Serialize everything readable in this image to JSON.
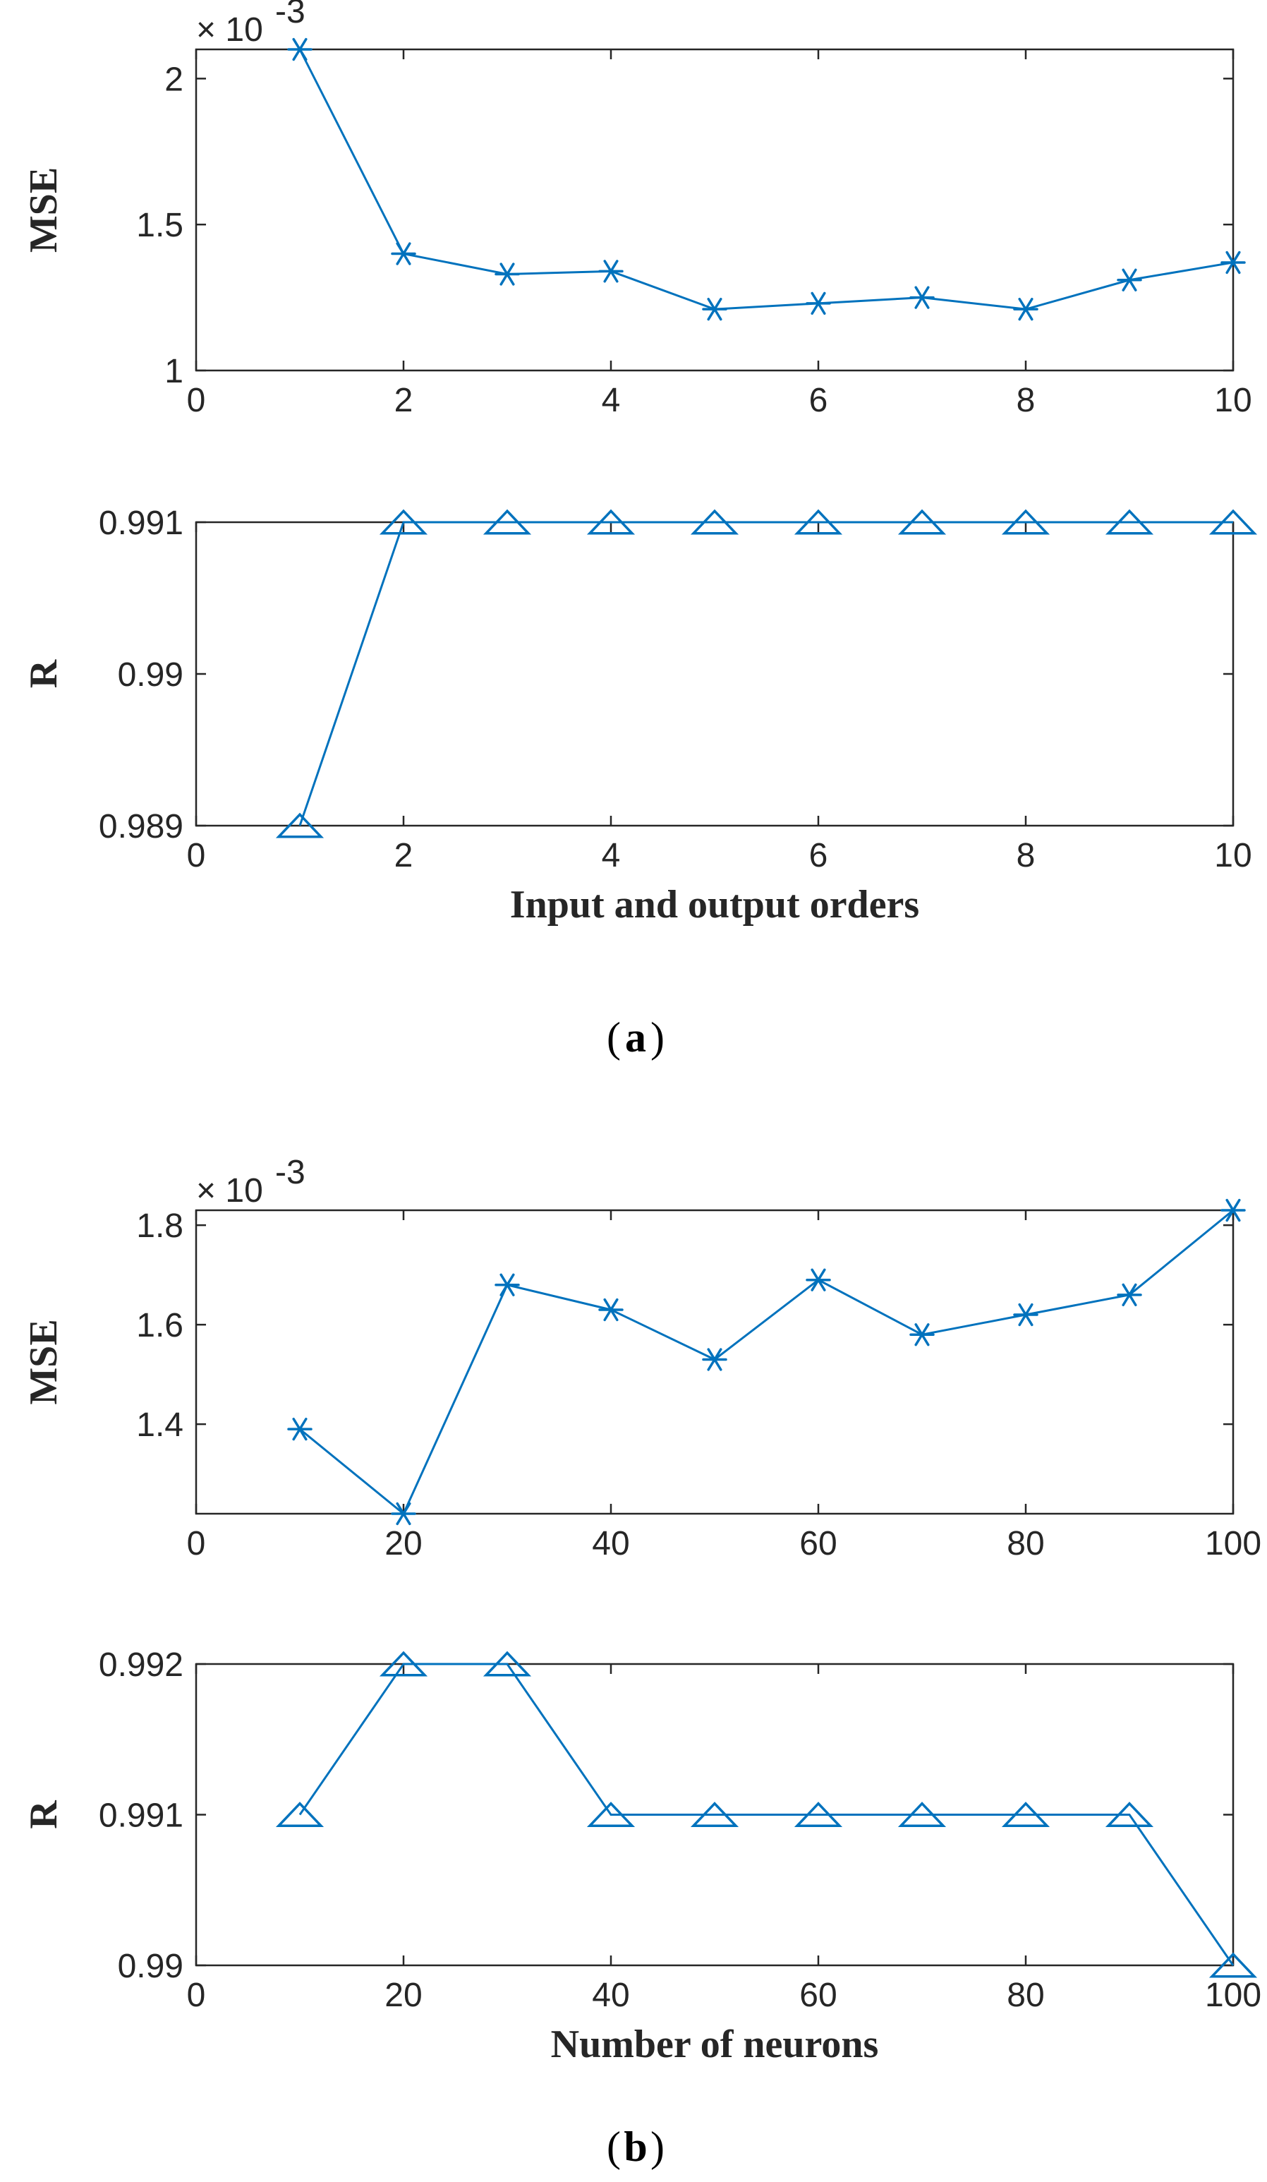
{
  "colors": {
    "series": "#0072BD",
    "axis": "#262626"
  },
  "chart_data": [
    {
      "type": "line",
      "panel": "a",
      "ylabel": "MSE",
      "xlabel": "",
      "multiplier": "× 10",
      "multiplier_exp": "-3",
      "marker": "asterisk",
      "x": [
        1,
        2,
        3,
        4,
        5,
        6,
        7,
        8,
        9,
        10
      ],
      "y": [
        2.1,
        1.4,
        1.33,
        1.34,
        1.21,
        1.23,
        1.25,
        1.21,
        1.31,
        1.37
      ],
      "xlim": [
        0,
        10
      ],
      "ylim": [
        1,
        2.1
      ],
      "xticks": [
        0,
        2,
        4,
        6,
        8,
        10
      ],
      "yticks": [
        1,
        1.5,
        2
      ],
      "xtick_labels": [
        "0",
        "2",
        "4",
        "6",
        "8",
        "10"
      ],
      "ytick_labels": [
        "1",
        "1.5",
        "2"
      ]
    },
    {
      "type": "line",
      "panel": "a",
      "ylabel": "R",
      "xlabel": "Input and output orders",
      "marker": "triangle",
      "x": [
        1,
        2,
        3,
        4,
        5,
        6,
        7,
        8,
        9,
        10
      ],
      "y": [
        0.989,
        0.991,
        0.991,
        0.991,
        0.991,
        0.991,
        0.991,
        0.991,
        0.991,
        0.991
      ],
      "xlim": [
        0,
        10
      ],
      "ylim": [
        0.989,
        0.991
      ],
      "xticks": [
        0,
        2,
        4,
        6,
        8,
        10
      ],
      "yticks": [
        0.989,
        0.99,
        0.991
      ],
      "xtick_labels": [
        "0",
        "2",
        "4",
        "6",
        "8",
        "10"
      ],
      "ytick_labels": [
        "0.989",
        "0.99",
        "0.991"
      ]
    },
    {
      "type": "line",
      "panel": "b",
      "ylabel": "MSE",
      "xlabel": "",
      "multiplier": "× 10",
      "multiplier_exp": "-3",
      "marker": "asterisk",
      "x": [
        10,
        20,
        30,
        40,
        50,
        60,
        70,
        80,
        90,
        100
      ],
      "y": [
        1.39,
        1.22,
        1.68,
        1.63,
        1.53,
        1.69,
        1.58,
        1.62,
        1.66,
        1.83
      ],
      "xlim": [
        0,
        100
      ],
      "ylim": [
        1.22,
        1.83
      ],
      "xticks": [
        0,
        20,
        40,
        60,
        80,
        100
      ],
      "yticks": [
        1.4,
        1.6,
        1.8
      ],
      "xtick_labels": [
        "0",
        "20",
        "40",
        "60",
        "80",
        "100"
      ],
      "ytick_labels": [
        "1.4",
        "1.6",
        "1.8"
      ]
    },
    {
      "type": "line",
      "panel": "b",
      "ylabel": "R",
      "xlabel": "Number of neurons",
      "marker": "triangle",
      "x": [
        10,
        20,
        30,
        40,
        50,
        60,
        70,
        80,
        90,
        100
      ],
      "y": [
        0.991,
        0.992,
        0.992,
        0.991,
        0.991,
        0.991,
        0.991,
        0.991,
        0.991,
        0.99
      ],
      "xlim": [
        0,
        100
      ],
      "ylim": [
        0.99,
        0.992
      ],
      "xticks": [
        0,
        20,
        40,
        60,
        80,
        100
      ],
      "yticks": [
        0.99,
        0.991,
        0.992
      ],
      "xtick_labels": [
        "0",
        "20",
        "40",
        "60",
        "80",
        "100"
      ],
      "ytick_labels": [
        "0.99",
        "0.991",
        "0.992"
      ]
    }
  ],
  "captions": {
    "a": "a",
    "b": "b"
  }
}
